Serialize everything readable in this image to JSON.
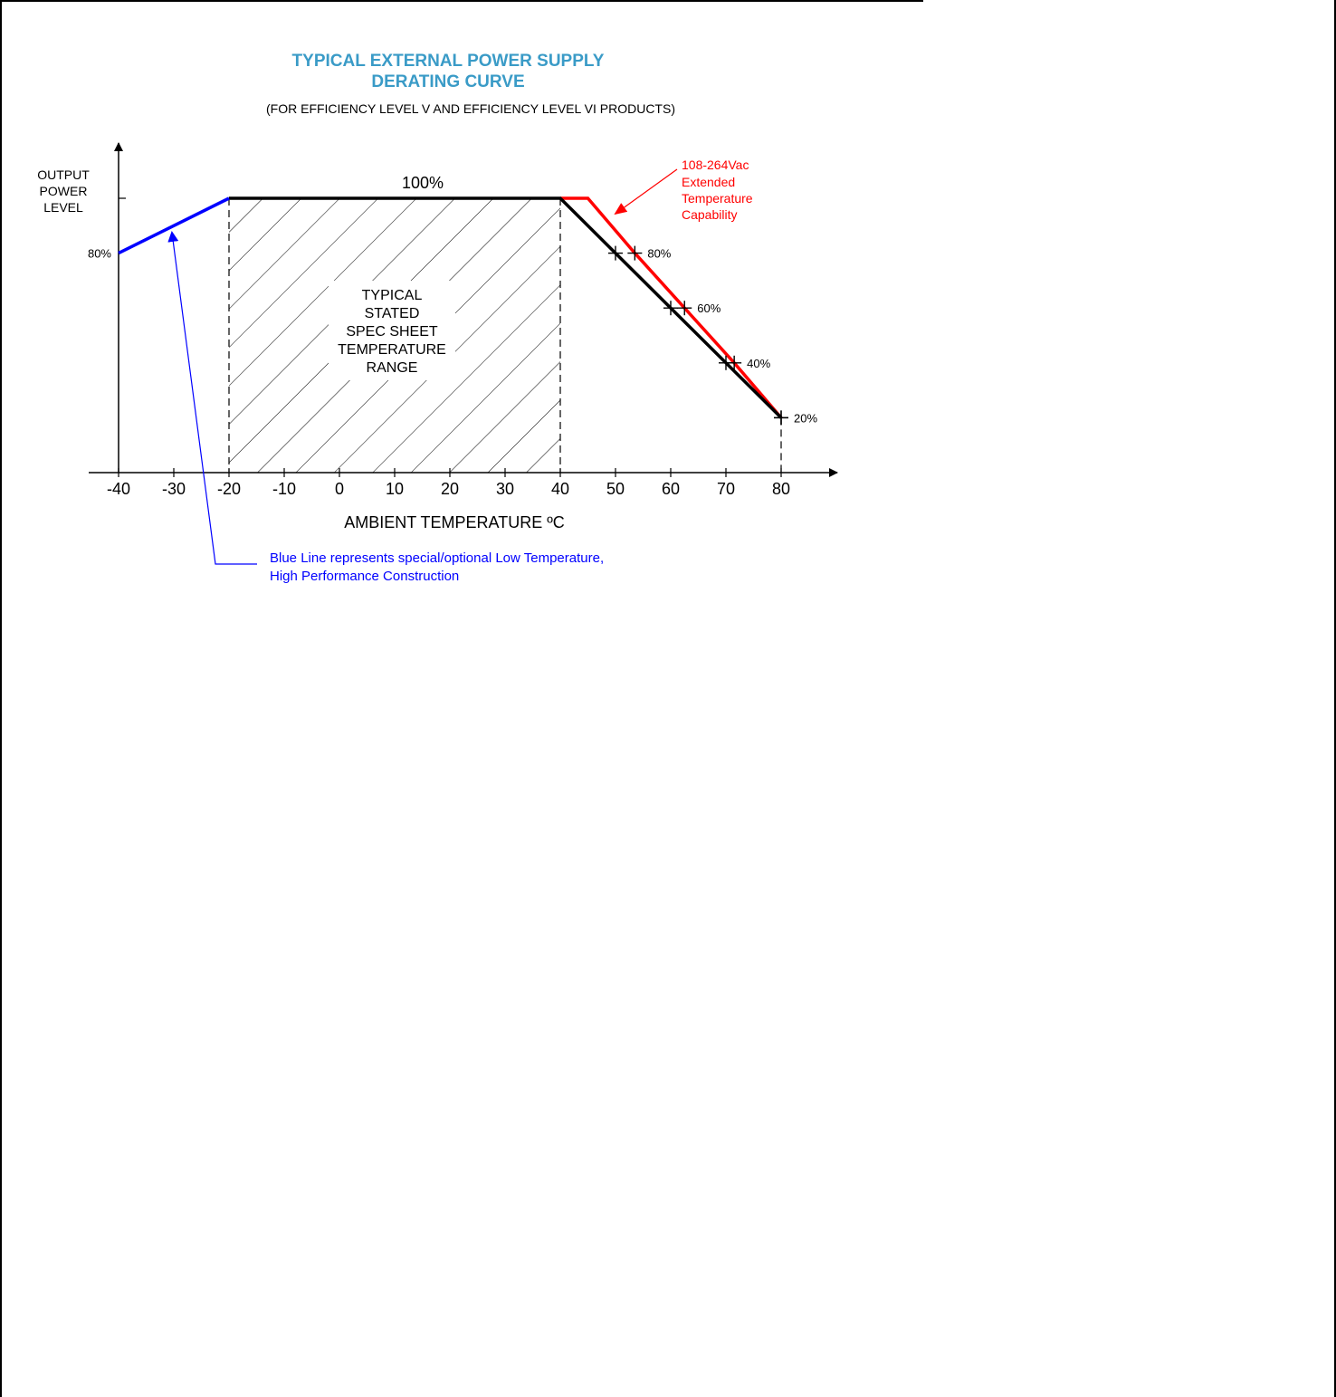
{
  "chart_data": {
    "type": "line",
    "title_lines": [
      "TYPICAL EXTERNAL POWER SUPPLY",
      "DERATING CURVE"
    ],
    "subtitle": "(FOR EFFICIENCY LEVEL V AND EFFICIENCY LEVEL VI PRODUCTS)",
    "ylabel_lines": [
      "OUTPUT",
      "POWER",
      "LEVEL"
    ],
    "xlabel": "AMBIENT TEMPERATURE ºC",
    "x_ticks": [
      -40,
      -30,
      -20,
      -10,
      0,
      10,
      20,
      30,
      40,
      50,
      60,
      70,
      80
    ],
    "xlim": [
      -45,
      88
    ],
    "ylim": [
      0,
      110
    ],
    "plateau_label": "100%",
    "y_label_80": "80%",
    "spec_range": {
      "x": [
        -20,
        40
      ],
      "label_lines": [
        "TYPICAL",
        "STATED",
        "SPEC SHEET",
        "TEMPERATURE",
        "RANGE"
      ]
    },
    "series": [
      {
        "color": "#000000",
        "x": [
          -20,
          40,
          50,
          60,
          70,
          80
        ],
        "y": [
          100,
          100,
          80,
          60,
          40,
          20
        ]
      },
      {
        "color": "#ff0000",
        "x": [
          40,
          45,
          53.5,
          62.5,
          71.5,
          80
        ],
        "y": [
          100,
          100,
          80,
          60,
          40,
          20
        ]
      },
      {
        "color": "#0000ff",
        "x": [
          -40,
          -20
        ],
        "y": [
          80,
          100
        ]
      }
    ],
    "point_labels": [
      {
        "text": "80%",
        "x": 53.5,
        "y": 80
      },
      {
        "text": "60%",
        "x": 62.5,
        "y": 60
      },
      {
        "text": "40%",
        "x": 71.5,
        "y": 40
      },
      {
        "text": "20%",
        "x": 80,
        "y": 20
      }
    ],
    "red_annotation_lines": [
      "108-264Vac",
      "Extended",
      "Temperature",
      "Capability"
    ],
    "blue_annotation_lines": [
      "Blue Line represents special/optional Low Temperature,",
      "High Performance Construction"
    ]
  }
}
